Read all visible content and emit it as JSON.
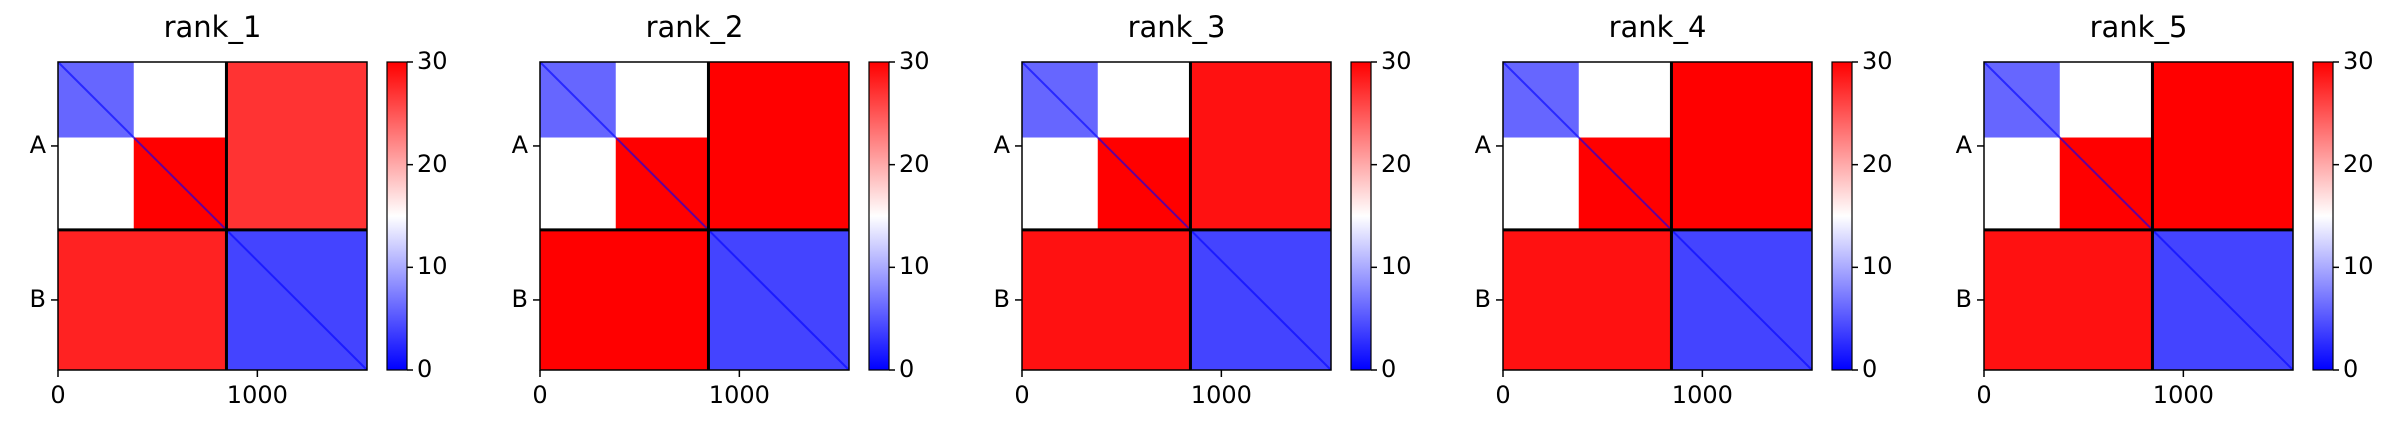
{
  "figure": {
    "colorbar_ticks": [
      "0",
      "10",
      "20",
      "30"
    ],
    "colormap": {
      "low": "#0000ff",
      "mid": "#ffffff",
      "high": "#ff0000"
    },
    "x_ticks": [
      "0",
      "1000"
    ],
    "y_ticks": [
      "A",
      "B"
    ]
  },
  "chart_data": [
    {
      "type": "heatmap",
      "title": "rank_1",
      "xlim": [
        0,
        1550
      ],
      "x_ticks": [
        0,
        1000
      ],
      "y_tick_labels": [
        "A",
        "B"
      ],
      "segment_boundary": 845,
      "colorbar_range": [
        0,
        30
      ],
      "colorbar_ticks": [
        0,
        10,
        20,
        30
      ],
      "blocks": [
        {
          "region": "A-A",
          "x": [
            0,
            380
          ],
          "y": [
            0,
            380
          ],
          "value": 6
        },
        {
          "region": "A-A",
          "x": [
            380,
            845
          ],
          "y": [
            380,
            845
          ],
          "value": 30
        },
        {
          "region": "A-B",
          "x": [
            845,
            1550
          ],
          "y": [
            0,
            845
          ],
          "value": 27
        },
        {
          "region": "B-A",
          "x": [
            0,
            845
          ],
          "y": [
            845,
            1550
          ],
          "value": 28
        },
        {
          "region": "B-B",
          "x": [
            845,
            1550
          ],
          "y": [
            845,
            1550
          ],
          "value": 4
        }
      ]
    },
    {
      "type": "heatmap",
      "title": "rank_2",
      "xlim": [
        0,
        1550
      ],
      "x_ticks": [
        0,
        1000
      ],
      "y_tick_labels": [
        "A",
        "B"
      ],
      "segment_boundary": 845,
      "colorbar_range": [
        0,
        30
      ],
      "colorbar_ticks": [
        0,
        10,
        20,
        30
      ],
      "blocks": [
        {
          "region": "A-A",
          "x": [
            0,
            380
          ],
          "y": [
            0,
            380
          ],
          "value": 6
        },
        {
          "region": "A-A",
          "x": [
            380,
            845
          ],
          "y": [
            380,
            845
          ],
          "value": 30
        },
        {
          "region": "A-B",
          "x": [
            845,
            1550
          ],
          "y": [
            0,
            845
          ],
          "value": 30
        },
        {
          "region": "B-A",
          "x": [
            0,
            845
          ],
          "y": [
            845,
            1550
          ],
          "value": 30
        },
        {
          "region": "B-B",
          "x": [
            845,
            1550
          ],
          "y": [
            845,
            1550
          ],
          "value": 4
        }
      ]
    },
    {
      "type": "heatmap",
      "title": "rank_3",
      "xlim": [
        0,
        1550
      ],
      "x_ticks": [
        0,
        1000
      ],
      "y_tick_labels": [
        "A",
        "B"
      ],
      "segment_boundary": 845,
      "colorbar_range": [
        0,
        30
      ],
      "colorbar_ticks": [
        0,
        10,
        20,
        30
      ],
      "blocks": [
        {
          "region": "A-A",
          "x": [
            0,
            380
          ],
          "y": [
            0,
            380
          ],
          "value": 6
        },
        {
          "region": "A-A",
          "x": [
            380,
            845
          ],
          "y": [
            380,
            845
          ],
          "value": 30
        },
        {
          "region": "A-B",
          "x": [
            845,
            1550
          ],
          "y": [
            0,
            845
          ],
          "value": 29
        },
        {
          "region": "B-A",
          "x": [
            0,
            845
          ],
          "y": [
            845,
            1550
          ],
          "value": 29
        },
        {
          "region": "B-B",
          "x": [
            845,
            1550
          ],
          "y": [
            845,
            1550
          ],
          "value": 4
        }
      ]
    },
    {
      "type": "heatmap",
      "title": "rank_4",
      "xlim": [
        0,
        1550
      ],
      "x_ticks": [
        0,
        1000
      ],
      "y_tick_labels": [
        "A",
        "B"
      ],
      "segment_boundary": 845,
      "colorbar_range": [
        0,
        30
      ],
      "colorbar_ticks": [
        0,
        10,
        20,
        30
      ],
      "blocks": [
        {
          "region": "A-A",
          "x": [
            0,
            380
          ],
          "y": [
            0,
            380
          ],
          "value": 6
        },
        {
          "region": "A-A",
          "x": [
            380,
            845
          ],
          "y": [
            380,
            845
          ],
          "value": 30
        },
        {
          "region": "A-B",
          "x": [
            845,
            1550
          ],
          "y": [
            0,
            845
          ],
          "value": 30
        },
        {
          "region": "B-A",
          "x": [
            0,
            845
          ],
          "y": [
            845,
            1550
          ],
          "value": 29
        },
        {
          "region": "B-B",
          "x": [
            845,
            1550
          ],
          "y": [
            845,
            1550
          ],
          "value": 4
        }
      ]
    },
    {
      "type": "heatmap",
      "title": "rank_5",
      "xlim": [
        0,
        1550
      ],
      "x_ticks": [
        0,
        1000
      ],
      "y_tick_labels": [
        "A",
        "B"
      ],
      "segment_boundary": 845,
      "colorbar_range": [
        0,
        30
      ],
      "colorbar_ticks": [
        0,
        10,
        20,
        30
      ],
      "blocks": [
        {
          "region": "A-A",
          "x": [
            0,
            380
          ],
          "y": [
            0,
            380
          ],
          "value": 6
        },
        {
          "region": "A-A",
          "x": [
            380,
            845
          ],
          "y": [
            380,
            845
          ],
          "value": 30
        },
        {
          "region": "A-B",
          "x": [
            845,
            1550
          ],
          "y": [
            0,
            845
          ],
          "value": 30
        },
        {
          "region": "B-A",
          "x": [
            0,
            845
          ],
          "y": [
            845,
            1550
          ],
          "value": 29
        },
        {
          "region": "B-B",
          "x": [
            845,
            1550
          ],
          "y": [
            845,
            1550
          ],
          "value": 4
        }
      ]
    }
  ]
}
